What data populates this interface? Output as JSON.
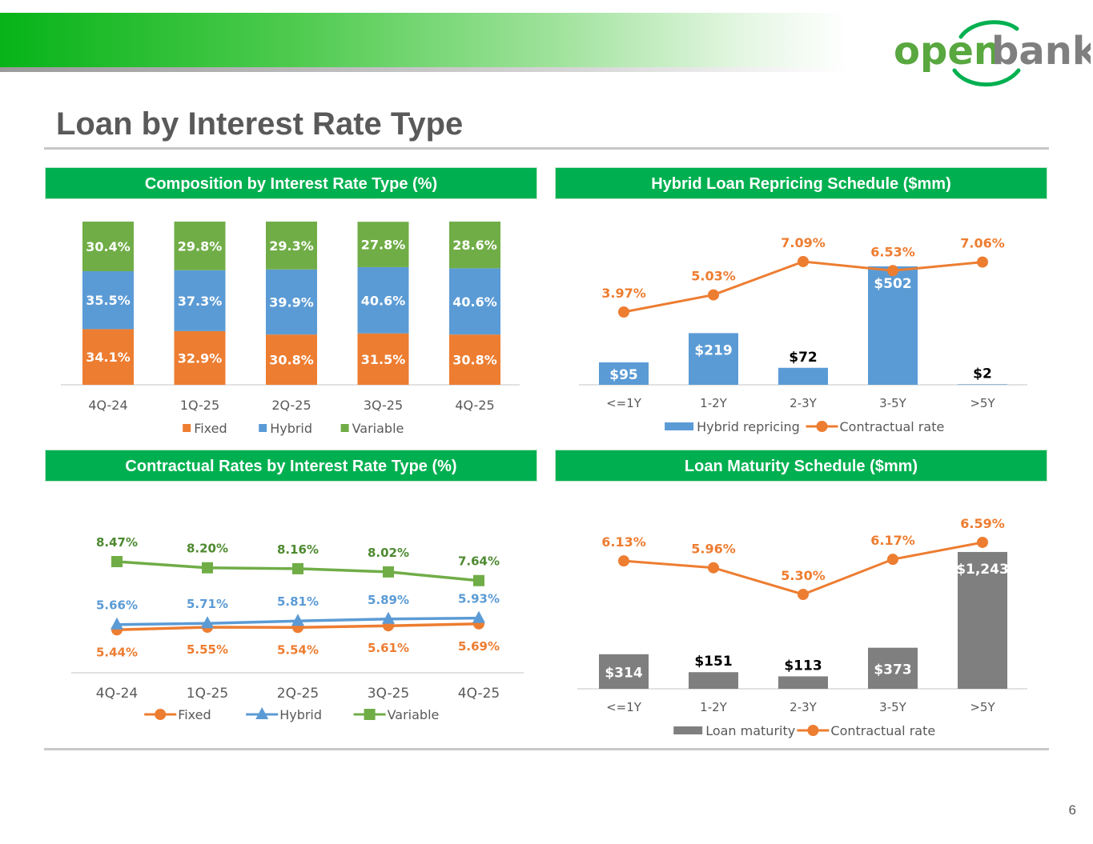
{
  "brand": {
    "logo_text_part1": "open",
    "logo_text_part2": "bank",
    "green": "#00b050",
    "dark_green": "#58a73f",
    "gray_text": "#595959"
  },
  "page": {
    "title": "Loan by Interest Rate Type",
    "number": "6"
  },
  "panels": {
    "composition": {
      "header": "Composition by Interest Rate Type (%)"
    },
    "hybrid": {
      "header": "Hybrid Loan Repricing Schedule ($mm)"
    },
    "contractual": {
      "header": "Contractual Rates by Interest Rate Type (%)"
    },
    "maturity": {
      "header": "Loan Maturity Schedule ($mm)"
    }
  },
  "chart_data": [
    {
      "id": "composition",
      "type": "bar",
      "stacked": true,
      "title": "Composition by Interest Rate Type (%)",
      "categories": [
        "4Q-24",
        "1Q-25",
        "2Q-25",
        "3Q-25",
        "4Q-25"
      ],
      "series": [
        {
          "name": "Fixed",
          "color": "#ed7d31",
          "values": [
            34.1,
            32.9,
            30.8,
            31.5,
            30.8
          ],
          "labels": [
            "34.1%",
            "32.9%",
            "30.8%",
            "31.5%",
            "30.8%"
          ]
        },
        {
          "name": "Hybrid",
          "color": "#5b9bd5",
          "values": [
            35.5,
            37.3,
            39.9,
            40.6,
            40.6
          ],
          "labels": [
            "35.5%",
            "37.3%",
            "39.9%",
            "40.6%",
            "40.6%"
          ]
        },
        {
          "name": "Variable",
          "color": "#70ad47",
          "values": [
            30.4,
            29.8,
            29.3,
            27.8,
            28.6
          ],
          "labels": [
            "30.4%",
            "29.8%",
            "29.3%",
            "27.8%",
            "28.6%"
          ]
        }
      ],
      "legend": "bottom"
    },
    {
      "id": "hybrid",
      "type": "bar",
      "title": "Hybrid Loan Repricing Schedule ($mm)",
      "categories": [
        "<=1Y",
        "1-2Y",
        "2-3Y",
        "3-5Y",
        ">5Y"
      ],
      "series": [
        {
          "name": "Hybrid repricing",
          "kind": "bar",
          "color": "#5b9bd5",
          "values": [
            95,
            219,
            72,
            502,
            2
          ],
          "labels": [
            "$95",
            "$219",
            "$72",
            "$502",
            "$2"
          ]
        },
        {
          "name": "Contractual rate",
          "kind": "line",
          "color": "#ed7d31",
          "values": [
            3.97,
            5.03,
            7.09,
            6.53,
            7.06
          ],
          "labels": [
            "3.97%",
            "5.03%",
            "7.09%",
            "6.53%",
            "7.06%"
          ]
        }
      ],
      "legend": "bottom"
    },
    {
      "id": "contractual",
      "type": "line",
      "title": "Contractual Rates by Interest Rate Type (%)",
      "categories": [
        "4Q-24",
        "1Q-25",
        "2Q-25",
        "3Q-25",
        "4Q-25"
      ],
      "series": [
        {
          "name": "Fixed",
          "color": "#ed7d31",
          "marker": "circle",
          "values": [
            5.44,
            5.55,
            5.54,
            5.61,
            5.69
          ],
          "labels": [
            "5.44%",
            "5.55%",
            "5.54%",
            "5.61%",
            "5.69%"
          ]
        },
        {
          "name": "Hybrid",
          "color": "#5b9bd5",
          "marker": "triangle",
          "values": [
            5.66,
            5.71,
            5.81,
            5.89,
            5.93
          ],
          "labels": [
            "5.66%",
            "5.71%",
            "5.81%",
            "5.89%",
            "5.93%"
          ]
        },
        {
          "name": "Variable",
          "color": "#70ad47",
          "marker": "square",
          "values": [
            8.47,
            8.2,
            8.16,
            8.02,
            7.64
          ],
          "labels": [
            "8.47%",
            "8.20%",
            "8.16%",
            "8.02%",
            "7.64%"
          ]
        }
      ],
      "legend": "bottom"
    },
    {
      "id": "maturity",
      "type": "bar",
      "title": "Loan Maturity Schedule ($mm)",
      "categories": [
        "<=1Y",
        "1-2Y",
        "2-3Y",
        "3-5Y",
        ">5Y"
      ],
      "series": [
        {
          "name": "Loan maturity",
          "kind": "bar",
          "color": "#7f7f7f",
          "values": [
            314,
            151,
            113,
            373,
            1243
          ],
          "labels": [
            "$314",
            "$151",
            "$113",
            "$373",
            "$1,243"
          ]
        },
        {
          "name": "Contractual rate",
          "kind": "line",
          "color": "#ed7d31",
          "values": [
            6.13,
            5.96,
            5.3,
            6.17,
            6.59
          ],
          "labels": [
            "6.13%",
            "5.96%",
            "5.30%",
            "6.17%",
            "6.59%"
          ]
        }
      ],
      "legend": "bottom"
    }
  ]
}
